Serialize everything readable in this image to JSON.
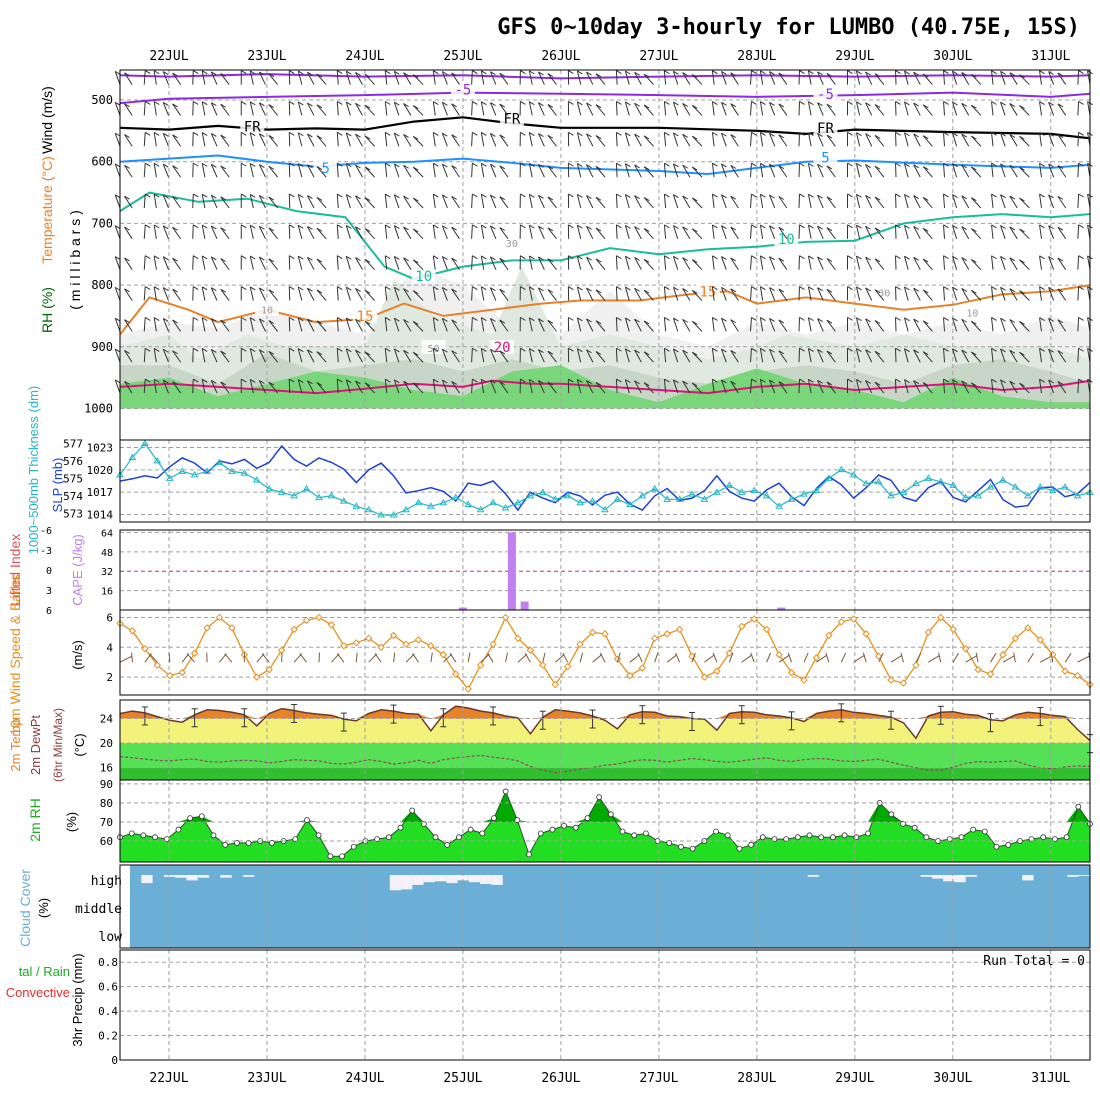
{
  "title": "GFS 0~10day 3-hourly for LUMBO (40.75E, 15S)",
  "dates": [
    "22JUL",
    "23JUL",
    "24JUL",
    "25JUL",
    "26JUL",
    "27JUL",
    "28JUL",
    "29JUL",
    "30JUL",
    "31JUL"
  ],
  "colors": {
    "frame": "#000000",
    "grid": "#a0a0a0",
    "cloud_bg": "#6baed6",
    "rh_dark": "#00aa00",
    "rh_light": "#22dd22",
    "temp_orange": "#e8822a",
    "temp_yellow": "#f2f27a",
    "dew_green": "#55e055",
    "dew_dark": "#2fbf2f",
    "slp": "#1a3fd6",
    "thick": "#22b8c8",
    "cape": "#c080f0",
    "wind": "#e8901c",
    "barb": "#7a5a3a",
    "iso_m5": "#8a2be2",
    "iso_fr": "#000000",
    "iso_5": "#1e90ff",
    "iso_10": "#1abc9c",
    "iso_15": "#e8822a",
    "iso_20": "#e0107a"
  },
  "panels": {
    "upper": {
      "ylabel_wind": "Wind (m/s)",
      "ylabel_temp": "Temperature (°C)",
      "ylabel_rh": "RH (%)",
      "ylabel_mb": "( m i l l i b a r s )",
      "ticks": [
        "500",
        "600",
        "700",
        "800",
        "900",
        "1000"
      ],
      "isotherm_labels": [
        "-5",
        "-5",
        "FR",
        "FR",
        "FR",
        "5",
        "5",
        "10",
        "10",
        "15",
        "15",
        "20",
        "30",
        "30",
        "50",
        "10",
        "10"
      ]
    },
    "slp": {
      "ylabel_thick": "1000~500mb Thickness (dm)",
      "ylabel_slp": "SLP (mb)",
      "left_ticks": [
        "577",
        "576",
        "575",
        "574",
        "573"
      ],
      "right_ticks": [
        "1023",
        "1020",
        "1017",
        "1014"
      ]
    },
    "cape": {
      "ylabel_li": "Lifted Index",
      "ylabel_cape": "CAPE (J/kg)",
      "left_ticks": [
        "-6",
        "-3",
        "0",
        "3",
        "6"
      ],
      "right_ticks": [
        "64",
        "48",
        "32",
        "16"
      ]
    },
    "wind": {
      "ylabel": "10m Wind Speed & Barbs",
      "unit": "(m/s)",
      "ticks": [
        "6",
        "4",
        "2"
      ]
    },
    "temp": {
      "ylabel1": "2m Temp",
      "ylabel2": "2m DewPt",
      "ylabel3": "(6hr Min/Max)",
      "unit": "(°C)",
      "ticks": [
        "24",
        "20",
        "16"
      ]
    },
    "rh": {
      "ylabel": "2m RH",
      "unit": "(%)",
      "ticks": [
        "90",
        "80",
        "70",
        "60"
      ]
    },
    "cloud": {
      "ylabel": "Cloud Cover",
      "unit": "(%)",
      "levels": [
        "high",
        "middle",
        "low"
      ]
    },
    "precip": {
      "ylabel_a": "tal / Rain",
      "ylabel_b": "Convective",
      "ylabel_c": "3hr Precip (mm)",
      "run_total": "Run Total = 0",
      "ticks": [
        "0.8",
        "0.6",
        "0.4",
        "0.2",
        "0"
      ]
    }
  },
  "chart_data": [
    {
      "type": "line",
      "name": "slp",
      "ylabel": "SLP (mb)",
      "ylim": [
        1013,
        1024
      ],
      "values": [
        1018.5,
        1018.8,
        1019.2,
        1018.9,
        1020.4,
        1021.6,
        1020.9,
        1019.6,
        1021.2,
        1020.8,
        1021.4,
        1020.2,
        1021.0,
        1023.2,
        1021.4,
        1020.5,
        1021.6,
        1021.0,
        1020.1,
        1018.3,
        1020.0,
        1020.9,
        1019.2,
        1016.9,
        1017.2,
        1017.6,
        1017.1,
        1015.8,
        1018.2,
        1017.9,
        1018.5,
        1016.8,
        1014.6,
        1017.0,
        1016.2,
        1015.6,
        1017.0,
        1016.5,
        1015.3,
        1016.6,
        1017.0,
        1015.4,
        1014.6,
        1016.5,
        1017.5,
        1015.9,
        1016.2,
        1017.2,
        1019.2,
        1017.1,
        1016.2,
        1015.8,
        1017.3,
        1018.2,
        1016.4,
        1015.2,
        1017.5,
        1019.1,
        1018.0,
        1016.2,
        1017.6,
        1019.3,
        1018.6,
        1016.3,
        1015.8,
        1017.6,
        1018.4,
        1016.3,
        1015.7,
        1017.2,
        1018.7,
        1016.0,
        1015.0,
        1015.2,
        1017.6,
        1017.7,
        1016.4,
        1016.8,
        1018.3
      ]
    },
    {
      "type": "line",
      "name": "thickness",
      "ylabel": "1000~500mb Thickness (dm)",
      "ylim": [
        572.5,
        577.2
      ],
      "values": [
        575.2,
        576.2,
        577.0,
        576.0,
        575.0,
        575.4,
        575.2,
        575.4,
        575.9,
        575.4,
        575.3,
        574.9,
        574.4,
        574.2,
        574.0,
        574.4,
        573.9,
        574.0,
        573.7,
        573.4,
        573.2,
        572.9,
        572.9,
        573.2,
        573.6,
        573.4,
        573.6,
        573.9,
        573.5,
        573.2,
        573.6,
        573.3,
        573.6,
        574.0,
        574.2,
        573.8,
        574.0,
        573.6,
        573.7,
        573.2,
        573.8,
        573.5,
        574.0,
        574.4,
        573.8,
        573.8,
        574.1,
        573.8,
        574.2,
        574.6,
        574.2,
        574.3,
        574.0,
        573.4,
        573.8,
        574.1,
        574.3,
        575.0,
        575.5,
        575.2,
        574.7,
        574.8,
        574.0,
        574.2,
        574.7,
        575.0,
        574.8,
        574.6,
        573.9,
        574.0,
        574.5,
        574.9,
        574.5,
        574.0,
        574.5,
        574.3,
        574.5,
        574.0,
        574.2
      ]
    },
    {
      "type": "bar",
      "name": "cape",
      "ylabel": "CAPE (J/kg)",
      "ylim": [
        0,
        66
      ],
      "values": [
        0,
        0,
        0,
        0,
        0,
        0,
        0,
        0,
        0,
        0,
        0,
        0,
        0,
        0,
        0,
        0,
        0,
        0,
        0,
        0,
        0,
        0,
        0,
        0,
        0,
        0,
        0,
        0,
        0,
        0,
        0,
        0,
        0,
        0,
        0,
        0,
        0,
        0,
        0,
        0,
        2,
        0,
        0,
        0,
        0,
        0,
        0,
        0,
        0,
        0,
        0,
        0,
        0,
        0,
        0,
        0,
        0,
        0,
        0,
        0,
        0,
        0,
        0,
        0,
        0,
        0,
        0,
        0,
        0,
        0,
        0,
        0,
        0,
        0,
        0,
        0,
        0,
        0,
        0
      ],
      "extra_bars": [
        {
          "x": 25.0,
          "value": 2
        },
        {
          "x": 25.5,
          "value": 64
        },
        {
          "x": 25.63,
          "value": 7
        },
        {
          "x": 28.25,
          "value": 2
        }
      ]
    },
    {
      "type": "line",
      "name": "wind_speed",
      "ylabel": "10m Wind Speed (m/s)",
      "ylim": [
        0.8,
        6.5
      ],
      "values": [
        5.6,
        5.1,
        3.9,
        2.8,
        2.1,
        2.3,
        3.6,
        5.3,
        6.0,
        5.3,
        3.5,
        2.0,
        2.5,
        3.8,
        5.2,
        5.8,
        6.0,
        5.5,
        4.1,
        4.3,
        4.6,
        4.0,
        4.8,
        4.2,
        4.5,
        4.1,
        3.5,
        2.2,
        1.2,
        2.8,
        4.2,
        6.0,
        4.6,
        3.8,
        2.8,
        1.5,
        2.7,
        4.2,
        5.0,
        4.9,
        3.2,
        2.1,
        2.6,
        4.6,
        4.9,
        5.2,
        3.4,
        2.0,
        2.4,
        3.6,
        5.4,
        5.9,
        5.2,
        3.5,
        2.3,
        1.8,
        3.3,
        4.8,
        5.7,
        5.9,
        4.9,
        3.4,
        1.8,
        1.6,
        2.8,
        5.0,
        6.0,
        5.2,
        3.9,
        2.5,
        2.2,
        3.5,
        4.6,
        5.3,
        4.5,
        3.5,
        2.4,
        2.1,
        1.5
      ]
    },
    {
      "type": "area",
      "name": "temp_2m",
      "ylabel": "2m Temp (°C)",
      "ylim": [
        14,
        27
      ],
      "values": [
        24.8,
        25.2,
        24.9,
        24.3,
        23.7,
        23.4,
        24.6,
        25.4,
        25.3,
        25.0,
        24.6,
        22.8,
        24.8,
        25.6,
        25.3,
        24.9,
        24.7,
        24.5,
        23.9,
        23.6,
        24.8,
        25.4,
        25.2,
        24.8,
        24.7,
        22.0,
        24.6,
        26.0,
        25.7,
        25.2,
        24.9,
        24.4,
        24.1,
        21.5,
        24.2,
        25.4,
        25.2,
        24.9,
        24.4,
        23.7,
        22.3,
        24.6,
        25.1,
        25.0,
        24.4,
        24.3,
        24.0,
        23.9,
        22.1,
        24.8,
        25.1,
        25.0,
        24.6,
        24.4,
        24.1,
        23.5,
        24.8,
        25.2,
        25.4,
        25.0,
        24.8,
        24.5,
        24.2,
        23.3,
        20.8,
        24.4,
        25.0,
        25.1,
        24.7,
        24.5,
        23.8,
        23.6,
        24.6,
        25.0,
        24.8,
        24.5,
        24.3,
        22.2,
        20.4
      ]
    },
    {
      "type": "line",
      "name": "dewpoint_2m",
      "ylabel": "2m DewPt (°C)",
      "ylim": [
        14,
        27
      ],
      "values": [
        17.8,
        17.6,
        17.4,
        17.2,
        17.1,
        17.3,
        17.4,
        17.0,
        16.9,
        17.1,
        17.2,
        17.1,
        16.8,
        17.0,
        17.3,
        17.2,
        17.1,
        16.7,
        16.6,
        16.9,
        17.3,
        17.0,
        16.6,
        16.8,
        17.2,
        16.7,
        17.3,
        17.6,
        17.8,
        18.0,
        17.7,
        17.5,
        17.1,
        16.2,
        15.6,
        15.2,
        15.4,
        15.8,
        16.0,
        16.4,
        16.6,
        17.0,
        17.3,
        17.2,
        16.9,
        17.2,
        17.5,
        17.3,
        17.0,
        16.9,
        17.1,
        17.4,
        17.6,
        17.2,
        17.0,
        17.3,
        17.5,
        17.4,
        17.1,
        17.0,
        17.2,
        17.4,
        16.9,
        16.4,
        16.0,
        15.6,
        15.6,
        16.1,
        16.7,
        17.0,
        16.9,
        17.0,
        17.1,
        16.4,
        16.0,
        15.8,
        16.1,
        16.3,
        16.2
      ]
    },
    {
      "type": "area",
      "name": "rh_2m",
      "ylabel": "2m RH (%)",
      "ylim": [
        49,
        92
      ],
      "values": [
        62,
        64,
        63,
        62,
        61,
        66,
        72,
        73,
        63,
        58,
        59,
        59,
        60,
        59,
        60,
        61,
        71,
        63,
        52,
        52,
        57,
        60,
        61,
        62,
        67,
        76,
        69,
        62,
        58,
        62,
        66,
        64,
        72,
        86,
        71,
        53,
        64,
        66,
        68,
        67,
        72,
        83,
        74,
        65,
        63,
        64,
        60,
        59,
        57,
        56,
        60,
        65,
        63,
        56,
        58,
        62,
        61,
        61,
        62,
        63,
        62,
        62,
        63,
        62,
        64,
        80,
        74,
        69,
        67,
        62,
        60,
        61,
        62,
        66,
        65,
        57,
        58,
        60,
        61,
        62,
        61,
        62,
        78,
        69
      ]
    },
    {
      "type": "bar",
      "name": "cloud_high",
      "ylabel": "Cloud Cover high (%)",
      "ylim": [
        0,
        100
      ],
      "values": [
        0,
        45,
        0,
        10,
        15,
        30,
        15,
        0,
        15,
        0,
        10,
        0,
        0,
        0,
        0,
        0,
        0,
        0,
        0,
        0,
        0,
        0,
        0,
        85,
        80,
        55,
        40,
        35,
        45,
        30,
        40,
        50,
        55,
        0,
        0,
        0,
        0,
        0,
        0,
        0,
        0,
        0,
        0,
        0,
        0,
        0,
        0,
        0,
        0,
        0,
        0,
        0,
        0,
        0,
        0,
        0,
        0,
        0,
        0,
        0,
        10,
        0,
        0,
        0,
        0,
        0,
        0,
        0,
        0,
        0,
        10,
        20,
        35,
        40,
        10,
        0,
        0,
        0,
        0,
        30,
        0,
        0,
        0,
        10,
        5
      ]
    },
    {
      "type": "line",
      "name": "precip_3hr",
      "ylabel": "3hr Precip (mm)",
      "ylim": [
        0,
        0.9
      ],
      "values": []
    }
  ]
}
